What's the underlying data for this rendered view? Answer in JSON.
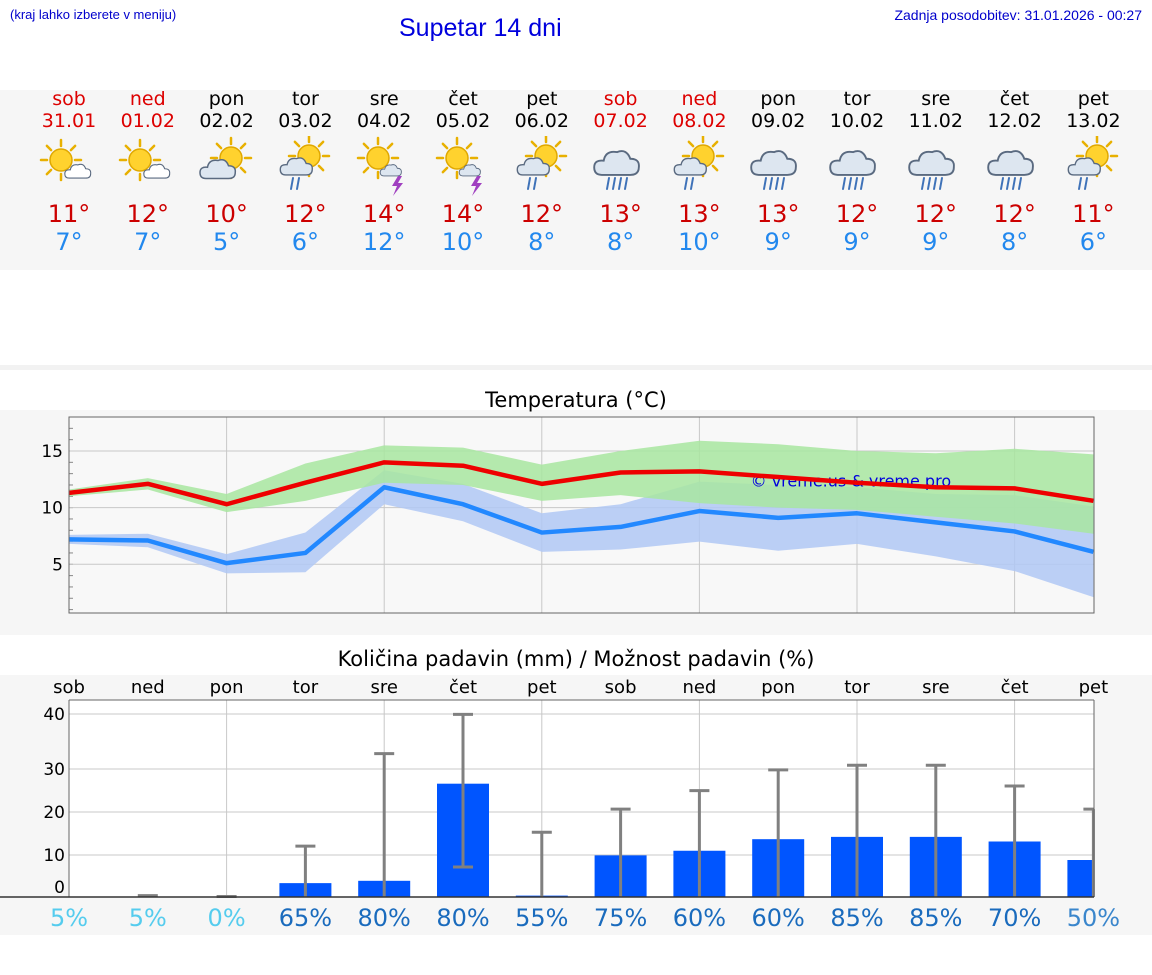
{
  "header": {
    "menu_hint": "(kraj lahko izberete v meniju)",
    "title": "Supetar 14 dni",
    "last_update": "Zadnja posodobitev: 31.01.2026 - 00:27"
  },
  "days": [
    {
      "name": "sob",
      "date": "31.01",
      "weekend": true,
      "icon": "sun-cloud-icon",
      "tmax": "11°",
      "tmin": "7°"
    },
    {
      "name": "ned",
      "date": "01.02",
      "weekend": true,
      "icon": "sun-cloud-icon",
      "tmax": "12°",
      "tmin": "7°"
    },
    {
      "name": "pon",
      "date": "02.02",
      "weekend": false,
      "icon": "cloud-sun-icon",
      "tmax": "10°",
      "tmin": "5°"
    },
    {
      "name": "tor",
      "date": "03.02",
      "weekend": false,
      "icon": "sun-cloud-rain-icon",
      "tmax": "12°",
      "tmin": "6°"
    },
    {
      "name": "sre",
      "date": "04.02",
      "weekend": false,
      "icon": "sun-thunder-icon",
      "tmax": "14°",
      "tmin": "12°"
    },
    {
      "name": "čet",
      "date": "05.02",
      "weekend": false,
      "icon": "sun-thunder-icon",
      "tmax": "14°",
      "tmin": "10°"
    },
    {
      "name": "pet",
      "date": "06.02",
      "weekend": false,
      "icon": "sun-cloud-rain-icon",
      "tmax": "12°",
      "tmin": "8°"
    },
    {
      "name": "sob",
      "date": "07.02",
      "weekend": true,
      "icon": "cloud-rain-icon",
      "tmax": "13°",
      "tmin": "8°"
    },
    {
      "name": "ned",
      "date": "08.02",
      "weekend": true,
      "icon": "sun-cloud-rain-icon",
      "tmax": "13°",
      "tmin": "10°"
    },
    {
      "name": "pon",
      "date": "09.02",
      "weekend": false,
      "icon": "cloud-rain-icon",
      "tmax": "13°",
      "tmin": "9°"
    },
    {
      "name": "tor",
      "date": "10.02",
      "weekend": false,
      "icon": "cloud-rain-icon",
      "tmax": "12°",
      "tmin": "9°"
    },
    {
      "name": "sre",
      "date": "11.02",
      "weekend": false,
      "icon": "cloud-rain-icon",
      "tmax": "12°",
      "tmin": "9°"
    },
    {
      "name": "čet",
      "date": "12.02",
      "weekend": false,
      "icon": "cloud-rain-icon",
      "tmax": "12°",
      "tmin": "8°"
    },
    {
      "name": "pet",
      "date": "13.02",
      "weekend": false,
      "icon": "sun-cloud-rain-icon",
      "tmax": "11°",
      "tmin": "6°"
    }
  ],
  "colors": {
    "max_line": "#ee0000",
    "min_line": "#2288ff",
    "max_band": "#a8e6a0",
    "min_band": "#b0c8f4",
    "overlap_band": "#74c4a6",
    "bar": "#0055ff",
    "error": "#808080",
    "prob_low": "#55ccee",
    "prob_high": "#1a6bbd"
  },
  "chart_data": [
    {
      "type": "line",
      "title": "Temperatura (°C)",
      "watermark": "© vreme.us & vreme.pro",
      "x": [
        0,
        1,
        2,
        3,
        4,
        5,
        6,
        7,
        8,
        9,
        10,
        11,
        12,
        13
      ],
      "ylim": [
        0.7,
        18
      ],
      "yticks": [
        5,
        10,
        15
      ],
      "grid": true,
      "series": [
        {
          "name": "max",
          "values": [
            11.3,
            12.1,
            10.3,
            12.2,
            14.0,
            13.7,
            12.1,
            13.1,
            13.2,
            12.7,
            12.2,
            11.8,
            11.7,
            10.6
          ],
          "band_low": [
            11.0,
            11.6,
            9.6,
            10.6,
            12.2,
            12.0,
            10.6,
            11.1,
            10.4,
            10.0,
            9.8,
            9.2,
            8.6,
            7.7
          ],
          "band_high": [
            11.6,
            12.6,
            11.2,
            13.9,
            15.5,
            15.3,
            13.8,
            15.0,
            15.9,
            15.6,
            15.0,
            14.8,
            15.2,
            14.7
          ]
        },
        {
          "name": "min",
          "values": [
            7.2,
            7.1,
            5.1,
            6.0,
            11.8,
            10.3,
            7.8,
            8.3,
            9.7,
            9.1,
            9.5,
            8.7,
            7.9,
            6.1
          ],
          "band_low": [
            6.8,
            6.5,
            4.2,
            4.3,
            10.3,
            8.8,
            6.1,
            6.3,
            7.0,
            6.2,
            6.8,
            5.7,
            4.4,
            2.1
          ],
          "band_high": [
            7.6,
            7.7,
            5.9,
            7.8,
            13.3,
            12.1,
            9.5,
            10.3,
            12.3,
            12.0,
            11.8,
            11.2,
            11.1,
            10.1
          ]
        }
      ]
    },
    {
      "type": "bar",
      "title": "Količina padavin (mm) / Možnost padavin (%)",
      "categories": [
        "sob",
        "ned",
        "pon",
        "tor",
        "sre",
        "čet",
        "pet",
        "sob",
        "ned",
        "pon",
        "tor",
        "sre",
        "čet",
        "pet"
      ],
      "yticks": [
        0,
        10,
        20,
        30,
        40
      ],
      "grid": true,
      "amount_mm": [
        0,
        0,
        0,
        3,
        3.5,
        24.5,
        0.3,
        9,
        10,
        12.5,
        13,
        13,
        12,
        8
      ],
      "error_high": [
        0,
        0.3,
        0.1,
        11,
        31,
        39.5,
        14,
        19,
        23,
        27.5,
        28.5,
        28.5,
        24,
        19
      ],
      "error_low": [
        0,
        0,
        0,
        0,
        0,
        6.5,
        0,
        0,
        0,
        0,
        0,
        0,
        0,
        0
      ],
      "probability": [
        "5%",
        "5%",
        "0%",
        "65%",
        "80%",
        "80%",
        "55%",
        "75%",
        "60%",
        "60%",
        "85%",
        "85%",
        "70%",
        "50%"
      ],
      "probability_values": [
        5,
        5,
        0,
        65,
        80,
        80,
        55,
        75,
        60,
        60,
        85,
        85,
        70,
        50
      ]
    }
  ]
}
